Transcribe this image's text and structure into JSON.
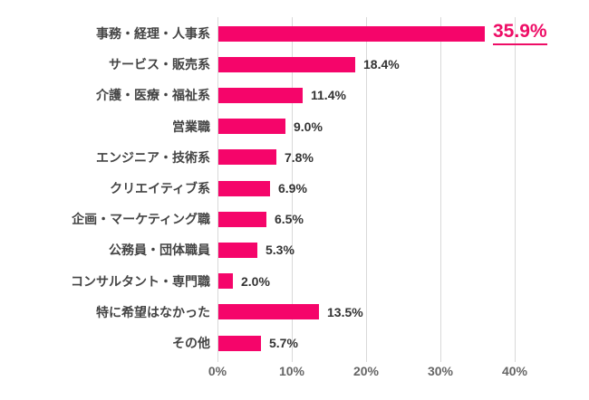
{
  "chart_data": {
    "type": "bar",
    "orientation": "horizontal",
    "title": "",
    "xlabel": "",
    "ylabel": "",
    "categories": [
      "事務・経理・人事系",
      "サービス・販売系",
      "介護・医療・福祉系",
      "営業職",
      "エンジニア・技術系",
      "クリエイティブ系",
      "企画・マーケティング職",
      "公務員・団体職員",
      "コンサルタント・専門職",
      "特に希望はなかった",
      "その他"
    ],
    "values": [
      35.9,
      18.4,
      11.4,
      9.0,
      7.8,
      6.9,
      6.5,
      5.3,
      2.0,
      13.5,
      5.7
    ],
    "value_labels": [
      "35.9%",
      "18.4%",
      "11.4%",
      "9.0%",
      "7.8%",
      "6.9%",
      "6.5%",
      "5.3%",
      "2.0%",
      "13.5%",
      "5.7%"
    ],
    "highlight_index": 0,
    "x_ticks": [
      "0%",
      "10%",
      "20%",
      "30%",
      "40%"
    ],
    "x_tick_values": [
      0,
      10,
      20,
      30,
      40
    ],
    "xlim": [
      0,
      40
    ],
    "grid": true,
    "legend": false,
    "colors": {
      "bar": "#F5056A",
      "highlight_value": "#EE0D66",
      "category_label": "#444444",
      "value_label": "#333333",
      "axis_label": "#666666",
      "gridline": "#D9D9D9",
      "background": "#FFFFFF"
    }
  }
}
